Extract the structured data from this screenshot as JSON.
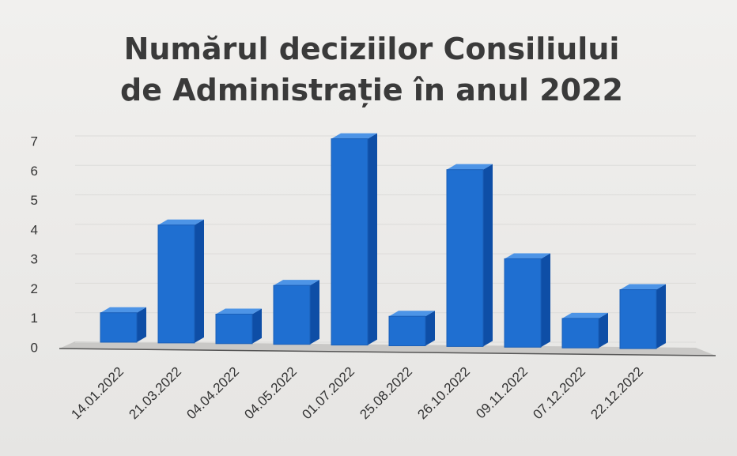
{
  "chart_data": {
    "type": "bar3d",
    "title": "Numărul deciziilor Consiliului de Administrație în anul 2022",
    "categories": [
      "14.01.2022",
      "21.03.2022",
      "04.04.2022",
      "04.05.2022",
      "01.07.2022",
      "25.08.2022",
      "26.10.2022",
      "09.11.2022",
      "07.12.2022",
      "22.12.2022"
    ],
    "values": [
      1,
      4,
      1,
      2,
      7,
      1,
      6,
      3,
      1,
      2
    ],
    "color": "#1f6fd1",
    "ylim": [
      0,
      7
    ],
    "yticks": [
      0,
      1,
      2,
      3,
      4,
      5,
      6,
      7
    ],
    "grid": true
  }
}
